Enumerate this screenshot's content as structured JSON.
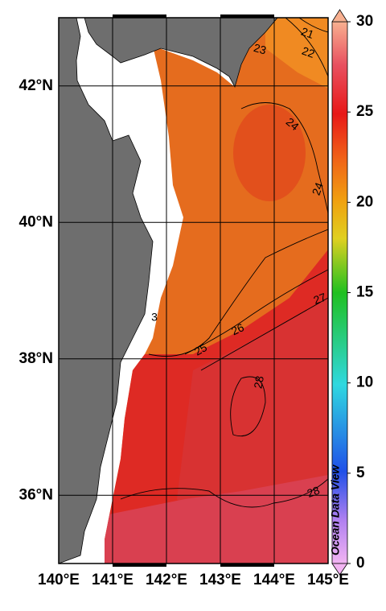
{
  "map": {
    "lonlim": [
      140,
      145
    ],
    "latlim": [
      35,
      43
    ],
    "lon_ticks": [
      {
        "value": 140,
        "label": "140°E"
      },
      {
        "value": 141,
        "label": "141°E"
      },
      {
        "value": 142,
        "label": "142°E"
      },
      {
        "value": 143,
        "label": "143°E"
      },
      {
        "value": 144,
        "label": "144°E"
      },
      {
        "value": 145,
        "label": "145°E"
      }
    ],
    "lat_ticks": [
      {
        "value": 36,
        "label": "36°N"
      },
      {
        "value": 38,
        "label": "38°N"
      },
      {
        "value": 40,
        "label": "40°N"
      },
      {
        "value": 42,
        "label": "42°N"
      }
    ],
    "colorbar": {
      "lim": [
        0,
        30
      ],
      "ticks": [
        0,
        5,
        10,
        15,
        20,
        25,
        30
      ]
    },
    "contour_labels": [
      21,
      22,
      23,
      24,
      24,
      25,
      26,
      27,
      28,
      28,
      3
    ],
    "credit": "Ocean Data View"
  }
}
